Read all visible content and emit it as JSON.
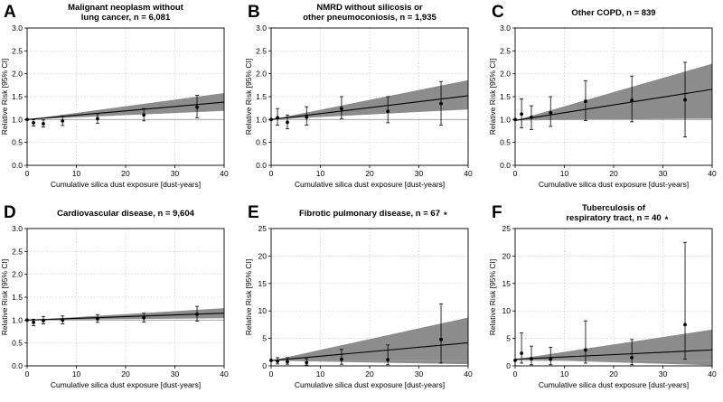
{
  "chart_data": [
    {
      "type": "scatter",
      "letter": "A",
      "title": [
        "Malignant neoplasm without",
        "lung cancer, n = 6,081"
      ],
      "asterisk": "",
      "xlabel": "Cumulative silica dust exposure [dust-years]",
      "ylabel": "Relative Risk [95% CI]",
      "xlim": [
        0,
        40
      ],
      "ylim": [
        0,
        3.0
      ],
      "xticks": [
        "0",
        "10",
        "20",
        "30",
        "40"
      ],
      "yticks": [
        "0.0",
        "0.5",
        "1.0",
        "1.5",
        "2.0",
        "2.5",
        "3.0"
      ],
      "grid": true,
      "reference_line": 1.0,
      "points": [
        {
          "x": 0,
          "y": 1.0,
          "lo": 1.0,
          "hi": 1.0
        },
        {
          "x": 1.3,
          "y": 0.93,
          "lo": 0.86,
          "hi": 1.0
        },
        {
          "x": 3.3,
          "y": 0.91,
          "lo": 0.84,
          "hi": 0.99
        },
        {
          "x": 7.2,
          "y": 0.97,
          "lo": 0.87,
          "hi": 1.08
        },
        {
          "x": 14.3,
          "y": 1.02,
          "lo": 0.92,
          "hi": 1.13
        },
        {
          "x": 23.7,
          "y": 1.1,
          "lo": 0.97,
          "hi": 1.24
        },
        {
          "x": 34.5,
          "y": 1.27,
          "lo": 1.04,
          "hi": 1.53
        }
      ],
      "trend": {
        "y0": 1.0,
        "y40": 1.38
      },
      "band": {
        "lo40": 1.19,
        "hi40": 1.58
      }
    },
    {
      "type": "scatter",
      "letter": "B",
      "title": [
        "NMRD without silicosis or",
        "other pneumoconiosis, n = 1,935"
      ],
      "asterisk": "",
      "xlabel": "Cumulative silica dust exposure [dust-years]",
      "ylabel": "Relative Risk [95% CI]",
      "xlim": [
        0,
        40
      ],
      "ylim": [
        0,
        3.0
      ],
      "xticks": [
        "0",
        "10",
        "20",
        "30",
        "40"
      ],
      "yticks": [
        "0.0",
        "0.5",
        "1.0",
        "1.5",
        "2.0",
        "2.5",
        "3.0"
      ],
      "grid": true,
      "reference_line": 1.0,
      "points": [
        {
          "x": 0,
          "y": 1.0,
          "lo": 1.0,
          "hi": 1.0
        },
        {
          "x": 1.3,
          "y": 1.04,
          "lo": 0.88,
          "hi": 1.24
        },
        {
          "x": 3.3,
          "y": 0.94,
          "lo": 0.8,
          "hi": 1.1
        },
        {
          "x": 7.2,
          "y": 1.05,
          "lo": 0.88,
          "hi": 1.28
        },
        {
          "x": 14.3,
          "y": 1.24,
          "lo": 1.02,
          "hi": 1.5
        },
        {
          "x": 23.7,
          "y": 1.18,
          "lo": 0.93,
          "hi": 1.5
        },
        {
          "x": 34.5,
          "y": 1.35,
          "lo": 0.88,
          "hi": 1.83
        }
      ],
      "trend": {
        "y0": 1.0,
        "y40": 1.52
      },
      "band": {
        "lo40": 1.22,
        "hi40": 1.86
      }
    },
    {
      "type": "scatter",
      "letter": "C",
      "title": [
        "Other COPD, n = 839"
      ],
      "asterisk": "",
      "xlabel": "Cumulative silica dust exposure [dust-years]",
      "ylabel": "Relative Risk [95% CI]",
      "xlim": [
        0,
        40
      ],
      "ylim": [
        0,
        3.0
      ],
      "xticks": [
        "0",
        "10",
        "20",
        "30",
        "40"
      ],
      "yticks": [
        "0.0",
        "0.5",
        "1.0",
        "1.5",
        "2.0",
        "2.5",
        "3.0"
      ],
      "grid": true,
      "reference_line": 1.0,
      "points": [
        {
          "x": 0,
          "y": 1.0,
          "lo": 1.0,
          "hi": 1.0
        },
        {
          "x": 1.3,
          "y": 1.12,
          "lo": 0.82,
          "hi": 1.45
        },
        {
          "x": 3.3,
          "y": 1.05,
          "lo": 0.78,
          "hi": 1.3
        },
        {
          "x": 7.2,
          "y": 1.15,
          "lo": 0.85,
          "hi": 1.5
        },
        {
          "x": 14.3,
          "y": 1.4,
          "lo": 0.98,
          "hi": 1.85
        },
        {
          "x": 23.7,
          "y": 1.42,
          "lo": 0.95,
          "hi": 1.95
        },
        {
          "x": 34.5,
          "y": 1.43,
          "lo": 0.62,
          "hi": 2.25
        }
      ],
      "trend": {
        "y0": 0.98,
        "y40": 1.66
      },
      "band": {
        "lo40": 1.02,
        "hi40": 2.22
      }
    },
    {
      "type": "scatter",
      "letter": "D",
      "title": [
        "Cardiovascular disease, n = 9,604"
      ],
      "asterisk": "",
      "xlabel": "Cumulative silica dust exposure [dust-years]",
      "ylabel": "Relative Risk [95% CI]",
      "xlim": [
        0,
        40
      ],
      "ylim": [
        0,
        3.0
      ],
      "xticks": [
        "0",
        "10",
        "20",
        "30",
        "40"
      ],
      "yticks": [
        "0.0",
        "0.5",
        "1.0",
        "1.5",
        "2.0",
        "2.5",
        "3.0"
      ],
      "grid": true,
      "reference_line": 1.0,
      "points": [
        {
          "x": 0,
          "y": 1.0,
          "lo": 1.0,
          "hi": 1.0
        },
        {
          "x": 1.3,
          "y": 0.95,
          "lo": 0.88,
          "hi": 1.02
        },
        {
          "x": 3.3,
          "y": 0.99,
          "lo": 0.92,
          "hi": 1.08
        },
        {
          "x": 7.2,
          "y": 1.0,
          "lo": 0.92,
          "hi": 1.09
        },
        {
          "x": 14.3,
          "y": 1.03,
          "lo": 0.95,
          "hi": 1.12
        },
        {
          "x": 23.7,
          "y": 1.05,
          "lo": 0.96,
          "hi": 1.15
        },
        {
          "x": 34.5,
          "y": 1.13,
          "lo": 0.98,
          "hi": 1.3
        }
      ],
      "trend": {
        "y0": 1.0,
        "y40": 1.15
      },
      "band": {
        "lo40": 1.04,
        "hi40": 1.26
      }
    },
    {
      "type": "scatter",
      "letter": "E",
      "title": [
        "Fibrotic pulmonary disease, n = 67"
      ],
      "asterisk": "*",
      "xlabel": "Cumulative silica dust exposure [dust-years]",
      "ylabel": "Relative Risk [95% CI]",
      "xlim": [
        0,
        40
      ],
      "ylim": [
        0,
        25
      ],
      "xticks": [
        "0",
        "10",
        "20",
        "30",
        "40"
      ],
      "yticks": [
        "0",
        "5",
        "10",
        "15",
        "20",
        "25"
      ],
      "grid": true,
      "reference_line": 1.0,
      "points": [
        {
          "x": 0,
          "y": 1.0,
          "lo": 1.0,
          "hi": 1.0
        },
        {
          "x": 1.3,
          "y": 0.85,
          "lo": 0.35,
          "hi": 1.5
        },
        {
          "x": 3.3,
          "y": 0.75,
          "lo": 0.3,
          "hi": 1.5
        },
        {
          "x": 7.2,
          "y": 0.6,
          "lo": 0.15,
          "hi": 1.3
        },
        {
          "x": 14.3,
          "y": 1.2,
          "lo": 0.3,
          "hi": 3.0
        },
        {
          "x": 23.7,
          "y": 1.1,
          "lo": 0.2,
          "hi": 3.8
        },
        {
          "x": 34.5,
          "y": 4.8,
          "lo": 0.5,
          "hi": 11.3
        }
      ],
      "trend": {
        "y0": 0.95,
        "y40": 4.2
      },
      "band": {
        "lo40": 0.3,
        "hi40": 8.8
      }
    },
    {
      "type": "scatter",
      "letter": "F",
      "title": [
        "Tuberculosis of",
        "respiratory tract, n = 40"
      ],
      "asterisk": "*",
      "xlabel": "Cumulative silica dust exposure [dust-years]",
      "ylabel": "Relative Risk [95% CI]",
      "xlim": [
        0,
        40
      ],
      "ylim": [
        0,
        25
      ],
      "xticks": [
        "0",
        "10",
        "20",
        "30",
        "40"
      ],
      "yticks": [
        "0",
        "5",
        "10",
        "15",
        "20",
        "25"
      ],
      "grid": true,
      "reference_line": 1.0,
      "points": [
        {
          "x": 0,
          "y": 1.0,
          "lo": 1.0,
          "hi": 1.0
        },
        {
          "x": 1.3,
          "y": 2.3,
          "lo": 0.5,
          "hi": 6.0
        },
        {
          "x": 3.3,
          "y": 1.3,
          "lo": 0.2,
          "hi": 3.6
        },
        {
          "x": 7.2,
          "y": 1.2,
          "lo": 0.2,
          "hi": 3.4
        },
        {
          "x": 14.3,
          "y": 2.9,
          "lo": 0.5,
          "hi": 8.2
        },
        {
          "x": 23.7,
          "y": 1.5,
          "lo": 0.2,
          "hi": 4.8
        },
        {
          "x": 34.5,
          "y": 7.5,
          "lo": 1.2,
          "hi": 22.5
        }
      ],
      "trend": {
        "y0": 1.2,
        "y40": 2.9
      },
      "band": {
        "lo40": 0.1,
        "hi40": 6.6
      }
    }
  ]
}
